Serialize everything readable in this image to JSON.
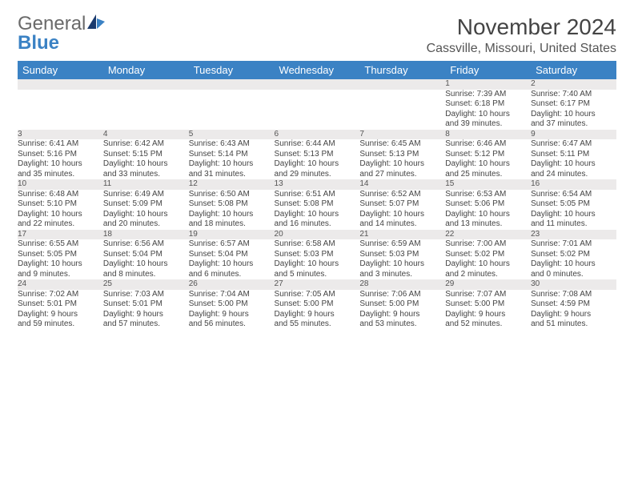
{
  "logo": {
    "part1": "General",
    "part2": "Blue"
  },
  "title": "November 2024",
  "location": "Cassville, Missouri, United States",
  "colors": {
    "header_bg": "#3b82c4",
    "daynum_bg": "#eceaea",
    "row_border": "#3b82c4",
    "text": "#444444"
  },
  "day_headers": [
    "Sunday",
    "Monday",
    "Tuesday",
    "Wednesday",
    "Thursday",
    "Friday",
    "Saturday"
  ],
  "weeks": [
    [
      null,
      null,
      null,
      null,
      null,
      {
        "n": "1",
        "sr": "Sunrise: 7:39 AM",
        "ss": "Sunset: 6:18 PM",
        "d1": "Daylight: 10 hours",
        "d2": "and 39 minutes."
      },
      {
        "n": "2",
        "sr": "Sunrise: 7:40 AM",
        "ss": "Sunset: 6:17 PM",
        "d1": "Daylight: 10 hours",
        "d2": "and 37 minutes."
      }
    ],
    [
      {
        "n": "3",
        "sr": "Sunrise: 6:41 AM",
        "ss": "Sunset: 5:16 PM",
        "d1": "Daylight: 10 hours",
        "d2": "and 35 minutes."
      },
      {
        "n": "4",
        "sr": "Sunrise: 6:42 AM",
        "ss": "Sunset: 5:15 PM",
        "d1": "Daylight: 10 hours",
        "d2": "and 33 minutes."
      },
      {
        "n": "5",
        "sr": "Sunrise: 6:43 AM",
        "ss": "Sunset: 5:14 PM",
        "d1": "Daylight: 10 hours",
        "d2": "and 31 minutes."
      },
      {
        "n": "6",
        "sr": "Sunrise: 6:44 AM",
        "ss": "Sunset: 5:13 PM",
        "d1": "Daylight: 10 hours",
        "d2": "and 29 minutes."
      },
      {
        "n": "7",
        "sr": "Sunrise: 6:45 AM",
        "ss": "Sunset: 5:13 PM",
        "d1": "Daylight: 10 hours",
        "d2": "and 27 minutes."
      },
      {
        "n": "8",
        "sr": "Sunrise: 6:46 AM",
        "ss": "Sunset: 5:12 PM",
        "d1": "Daylight: 10 hours",
        "d2": "and 25 minutes."
      },
      {
        "n": "9",
        "sr": "Sunrise: 6:47 AM",
        "ss": "Sunset: 5:11 PM",
        "d1": "Daylight: 10 hours",
        "d2": "and 24 minutes."
      }
    ],
    [
      {
        "n": "10",
        "sr": "Sunrise: 6:48 AM",
        "ss": "Sunset: 5:10 PM",
        "d1": "Daylight: 10 hours",
        "d2": "and 22 minutes."
      },
      {
        "n": "11",
        "sr": "Sunrise: 6:49 AM",
        "ss": "Sunset: 5:09 PM",
        "d1": "Daylight: 10 hours",
        "d2": "and 20 minutes."
      },
      {
        "n": "12",
        "sr": "Sunrise: 6:50 AM",
        "ss": "Sunset: 5:08 PM",
        "d1": "Daylight: 10 hours",
        "d2": "and 18 minutes."
      },
      {
        "n": "13",
        "sr": "Sunrise: 6:51 AM",
        "ss": "Sunset: 5:08 PM",
        "d1": "Daylight: 10 hours",
        "d2": "and 16 minutes."
      },
      {
        "n": "14",
        "sr": "Sunrise: 6:52 AM",
        "ss": "Sunset: 5:07 PM",
        "d1": "Daylight: 10 hours",
        "d2": "and 14 minutes."
      },
      {
        "n": "15",
        "sr": "Sunrise: 6:53 AM",
        "ss": "Sunset: 5:06 PM",
        "d1": "Daylight: 10 hours",
        "d2": "and 13 minutes."
      },
      {
        "n": "16",
        "sr": "Sunrise: 6:54 AM",
        "ss": "Sunset: 5:05 PM",
        "d1": "Daylight: 10 hours",
        "d2": "and 11 minutes."
      }
    ],
    [
      {
        "n": "17",
        "sr": "Sunrise: 6:55 AM",
        "ss": "Sunset: 5:05 PM",
        "d1": "Daylight: 10 hours",
        "d2": "and 9 minutes."
      },
      {
        "n": "18",
        "sr": "Sunrise: 6:56 AM",
        "ss": "Sunset: 5:04 PM",
        "d1": "Daylight: 10 hours",
        "d2": "and 8 minutes."
      },
      {
        "n": "19",
        "sr": "Sunrise: 6:57 AM",
        "ss": "Sunset: 5:04 PM",
        "d1": "Daylight: 10 hours",
        "d2": "and 6 minutes."
      },
      {
        "n": "20",
        "sr": "Sunrise: 6:58 AM",
        "ss": "Sunset: 5:03 PM",
        "d1": "Daylight: 10 hours",
        "d2": "and 5 minutes."
      },
      {
        "n": "21",
        "sr": "Sunrise: 6:59 AM",
        "ss": "Sunset: 5:03 PM",
        "d1": "Daylight: 10 hours",
        "d2": "and 3 minutes."
      },
      {
        "n": "22",
        "sr": "Sunrise: 7:00 AM",
        "ss": "Sunset: 5:02 PM",
        "d1": "Daylight: 10 hours",
        "d2": "and 2 minutes."
      },
      {
        "n": "23",
        "sr": "Sunrise: 7:01 AM",
        "ss": "Sunset: 5:02 PM",
        "d1": "Daylight: 10 hours",
        "d2": "and 0 minutes."
      }
    ],
    [
      {
        "n": "24",
        "sr": "Sunrise: 7:02 AM",
        "ss": "Sunset: 5:01 PM",
        "d1": "Daylight: 9 hours",
        "d2": "and 59 minutes."
      },
      {
        "n": "25",
        "sr": "Sunrise: 7:03 AM",
        "ss": "Sunset: 5:01 PM",
        "d1": "Daylight: 9 hours",
        "d2": "and 57 minutes."
      },
      {
        "n": "26",
        "sr": "Sunrise: 7:04 AM",
        "ss": "Sunset: 5:00 PM",
        "d1": "Daylight: 9 hours",
        "d2": "and 56 minutes."
      },
      {
        "n": "27",
        "sr": "Sunrise: 7:05 AM",
        "ss": "Sunset: 5:00 PM",
        "d1": "Daylight: 9 hours",
        "d2": "and 55 minutes."
      },
      {
        "n": "28",
        "sr": "Sunrise: 7:06 AM",
        "ss": "Sunset: 5:00 PM",
        "d1": "Daylight: 9 hours",
        "d2": "and 53 minutes."
      },
      {
        "n": "29",
        "sr": "Sunrise: 7:07 AM",
        "ss": "Sunset: 5:00 PM",
        "d1": "Daylight: 9 hours",
        "d2": "and 52 minutes."
      },
      {
        "n": "30",
        "sr": "Sunrise: 7:08 AM",
        "ss": "Sunset: 4:59 PM",
        "d1": "Daylight: 9 hours",
        "d2": "and 51 minutes."
      }
    ]
  ]
}
